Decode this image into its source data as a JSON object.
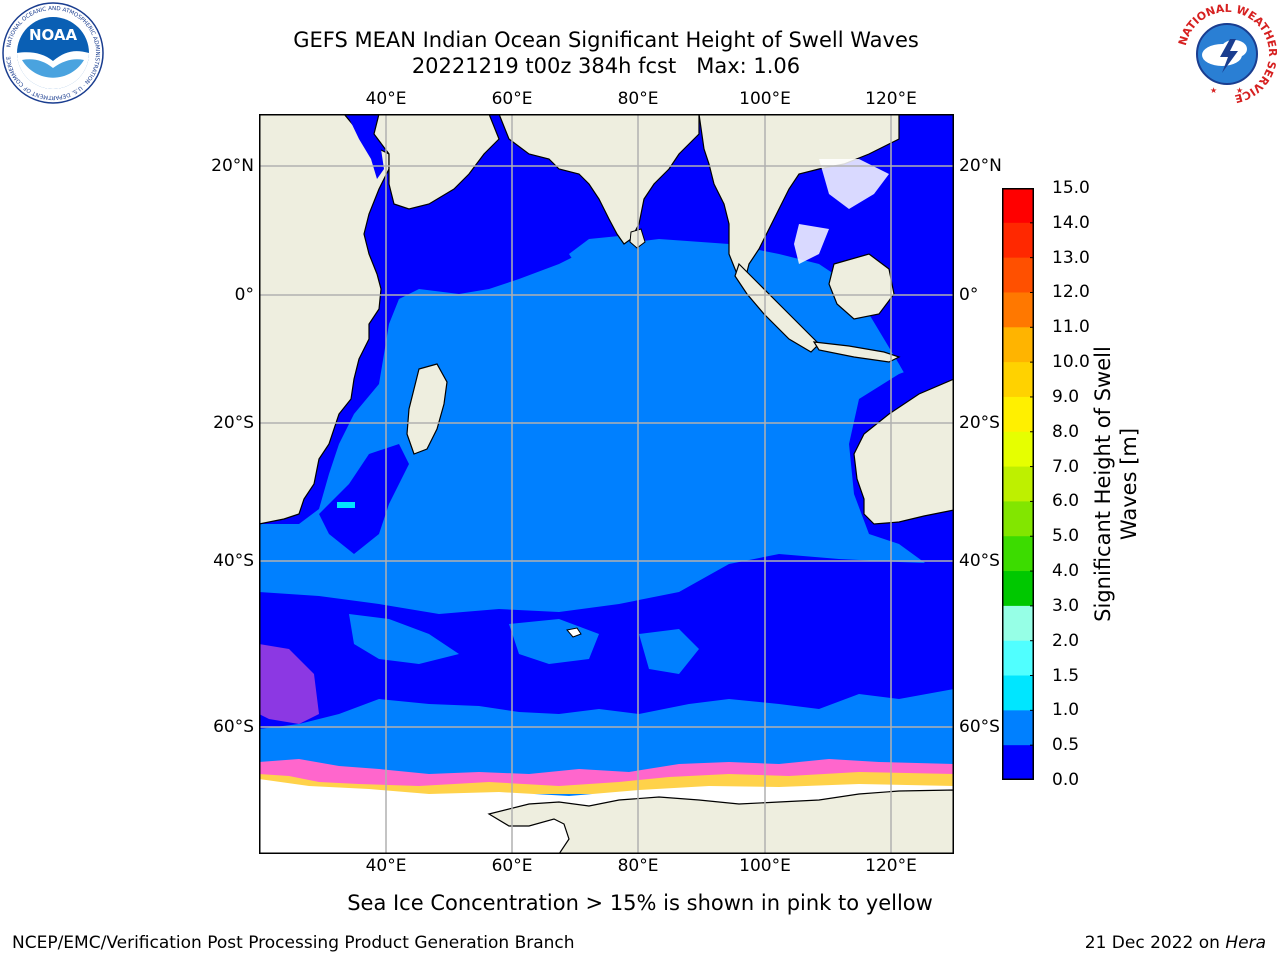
{
  "header": {
    "title_line1": "GEFS MEAN Indian Ocean Significant Height of Swell Waves",
    "title_line2": "20221219 t00z 384h fcst   Max: 1.06"
  },
  "map": {
    "lon_labels": [
      "40°E",
      "60°E",
      "80°E",
      "100°E",
      "120°E"
    ],
    "lat_labels": [
      "20°N",
      "0°",
      "20°S",
      "40°S",
      "60°S"
    ],
    "colors": {
      "land": "#eeeedf",
      "ocean_low": "#0000ff",
      "ocean_mid": "#0080ff",
      "ice": "#ffffff",
      "ice_edge_pink": "#ff66cc",
      "ice_edge_yellow": "#ffd24a",
      "grid": "#b0b0b0"
    }
  },
  "colorbar": {
    "label": "Significant Height of Swell Waves [m]",
    "ticks": [
      "15.0",
      "14.0",
      "13.0",
      "12.0",
      "11.0",
      "10.0",
      "9.0",
      "8.0",
      "7.0",
      "6.0",
      "5.0",
      "4.0",
      "3.0",
      "2.0",
      "1.5",
      "1.0",
      "0.5",
      "0.0"
    ],
    "colors": [
      "#ff0000",
      "#ff2800",
      "#ff5000",
      "#ff7800",
      "#ff9600",
      "#ffb400",
      "#ffd200",
      "#fff000",
      "#e6ff00",
      "#bef000",
      "#82e600",
      "#3cdc00",
      "#00c800",
      "#50f078",
      "#96ffe6",
      "#50ffff",
      "#00e6ff",
      "#0080ff",
      "#0000ff"
    ]
  },
  "footer": {
    "subtitle": "Sea Ice Concentration > 15% is shown in pink to yellow",
    "credit": "NCEP/EMC/Verification Post Processing Product Generation Branch",
    "date": "21 Dec 2022 on ",
    "machine": "Hera"
  },
  "logos": {
    "noaa_text": "NOAA",
    "noaa_ring": "NATIONAL OCEANIC AND ATMOSPHERIC ADMINISTRATION · U.S. DEPARTMENT OF COMMERCE",
    "nws_ring": "NATIONAL WEATHER SERVICE"
  }
}
